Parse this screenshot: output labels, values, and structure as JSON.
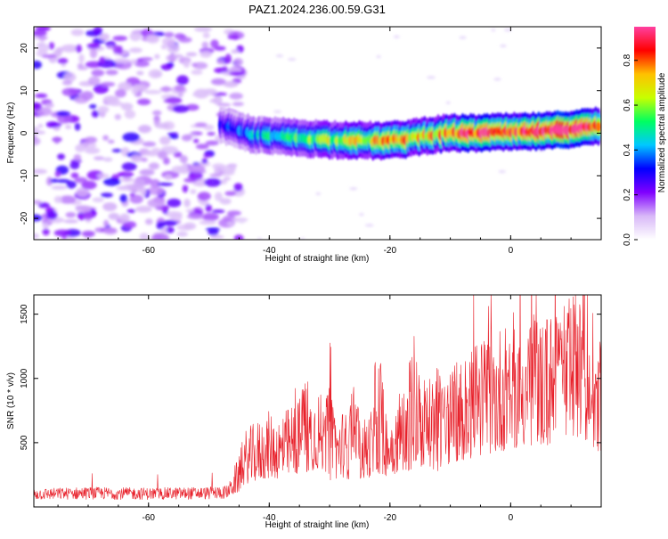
{
  "chart_data": [
    {
      "type": "heatmap",
      "title": "PAZ1.2024.236.00.59.G31",
      "xlabel": "Height of straight line (km)",
      "ylabel": "Frequency (Hz)",
      "xlim": [
        -79,
        15
      ],
      "ylim": [
        -25,
        25
      ],
      "x_ticks": [
        -60,
        -40,
        -20,
        0
      ],
      "y_ticks": [
        -20,
        -10,
        0,
        10,
        20
      ],
      "x_tick_labels": [
        "-60",
        "-40",
        "-20",
        "0"
      ],
      "y_tick_labels": [
        "-20",
        "-10",
        "0",
        "10",
        "20"
      ],
      "noise_region_x": [
        -79,
        -46
      ],
      "ridge": {
        "x": [
          -48,
          -45,
          -42,
          -38,
          -34,
          -30,
          -26,
          -22,
          -18,
          -14,
          -10,
          -6,
          -2,
          2,
          6,
          10,
          14
        ],
        "y": [
          2.0,
          0.5,
          -0.5,
          -0.8,
          -1.2,
          -1.5,
          -1.6,
          -1.8,
          -1.5,
          -0.5,
          0.0,
          0.0,
          0.2,
          0.3,
          0.5,
          1.0,
          1.6
        ],
        "amplitude": [
          0.28,
          0.32,
          0.4,
          0.45,
          0.5,
          0.55,
          0.6,
          0.65,
          0.7,
          0.6,
          0.75,
          0.8,
          0.85,
          0.8,
          0.9,
          0.85,
          0.7
        ]
      },
      "colorbar": {
        "label": "Normalized spectral amplitude",
        "range": [
          0,
          0.95
        ],
        "ticks": [
          0.0,
          0.2,
          0.4,
          0.6,
          0.8
        ],
        "tick_labels": [
          "0.0",
          "0.2",
          "0.4",
          "0.6",
          "0.8"
        ],
        "colors": [
          "#ffffff",
          "#d8b8f8",
          "#8000ff",
          "#0000ff",
          "#00c8ff",
          "#00ff60",
          "#c8ff00",
          "#ffc000",
          "#ff0000",
          "#ff40a0"
        ]
      }
    },
    {
      "type": "line",
      "xlabel": "Height of straight line (km)",
      "ylabel": "SNR (10 * v/v)",
      "xlim": [
        -79,
        15
      ],
      "ylim": [
        0,
        1650
      ],
      "x_ticks": [
        -60,
        -40,
        -20,
        0
      ],
      "y_ticks": [
        500,
        1000,
        1500
      ],
      "x_tick_labels": [
        "-60",
        "-40",
        "-20",
        "0"
      ],
      "y_tick_labels": [
        "500",
        "1000",
        "1500"
      ],
      "color": "#e8202a",
      "envelope": {
        "x": [
          -79,
          -70,
          -60,
          -50,
          -47,
          -45,
          -44,
          -42,
          -40,
          -38,
          -36,
          -34,
          -32,
          -30,
          -28,
          -26,
          -24,
          -22,
          -20,
          -18,
          -16,
          -14,
          -12,
          -10,
          -8,
          -6,
          -4,
          -2,
          0,
          2,
          4,
          6,
          8,
          10,
          12,
          14,
          15
        ],
        "y": [
          120,
          130,
          125,
          130,
          140,
          260,
          400,
          450,
          500,
          480,
          550,
          600,
          650,
          450,
          520,
          450,
          480,
          580,
          520,
          650,
          600,
          700,
          620,
          750,
          800,
          850,
          900,
          950,
          1000,
          1050,
          1000,
          1050,
          1000,
          1100,
          1200,
          1000,
          900
        ]
      },
      "peaks": {
        "x": [
          -34,
          -30,
          -26,
          -22,
          -16,
          -12,
          -8,
          -5,
          0,
          4,
          8,
          11.5,
          14
        ],
        "y": [
          1100,
          1000,
          980,
          1350,
          1470,
          1150,
          1250,
          1150,
          1280,
          1350,
          1250,
          1620,
          1100
        ]
      }
    }
  ]
}
